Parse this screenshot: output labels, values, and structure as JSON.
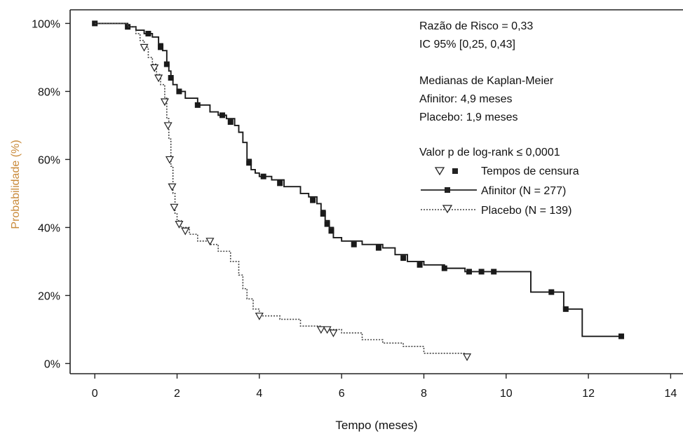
{
  "chart_data": {
    "type": "line",
    "subtype": "kaplan-meier",
    "xlabel": "Tempo (meses)",
    "ylabel": "Probabilidade (%)",
    "xlim": [
      -0.6,
      14.3
    ],
    "ylim": [
      -3,
      104
    ],
    "x_ticks": [
      0,
      2,
      4,
      6,
      8,
      10,
      12,
      14
    ],
    "y_ticks": [
      0,
      20,
      40,
      60,
      80,
      100
    ],
    "y_tick_labels": [
      "0%",
      "20%",
      "40%",
      "60%",
      "80%",
      "100%"
    ],
    "grid": false,
    "legend_position": "top-right",
    "annotations": {
      "hazard_ratio": "Razão de Risco = 0,33",
      "ci": "IC 95% [0,25, 0,43]",
      "medians_title": "Medianas de Kaplan-Meier",
      "median_afinitor": "Afinitor: 4,9 meses",
      "median_placebo": "Placebo: 1,9 meses",
      "pvalue": "Valor p de log-rank ≤ 0,0001"
    },
    "legend": {
      "censor_label": "Tempos de censura",
      "entries": [
        "Afinitor (N = 277)",
        "Placebo (N = 139)"
      ]
    },
    "series": [
      {
        "name": "Afinitor (N = 277)",
        "line_style": "solid",
        "marker": "square",
        "points": [
          [
            0,
            100
          ],
          [
            0.6,
            100
          ],
          [
            0.8,
            99
          ],
          [
            1.0,
            98
          ],
          [
            1.2,
            97
          ],
          [
            1.4,
            96
          ],
          [
            1.55,
            94
          ],
          [
            1.65,
            92
          ],
          [
            1.75,
            88
          ],
          [
            1.8,
            86
          ],
          [
            1.85,
            84
          ],
          [
            1.9,
            82
          ],
          [
            2.0,
            80
          ],
          [
            2.2,
            78
          ],
          [
            2.5,
            76
          ],
          [
            2.8,
            74
          ],
          [
            3.0,
            73
          ],
          [
            3.2,
            72
          ],
          [
            3.4,
            70
          ],
          [
            3.5,
            68
          ],
          [
            3.6,
            65
          ],
          [
            3.7,
            60
          ],
          [
            3.8,
            57
          ],
          [
            3.9,
            56
          ],
          [
            4.0,
            55
          ],
          [
            4.3,
            54
          ],
          [
            4.6,
            52
          ],
          [
            5.0,
            50
          ],
          [
            5.2,
            49
          ],
          [
            5.4,
            47
          ],
          [
            5.5,
            45
          ],
          [
            5.6,
            42
          ],
          [
            5.7,
            40
          ],
          [
            5.8,
            37
          ],
          [
            6.0,
            36
          ],
          [
            6.5,
            35
          ],
          [
            7.0,
            34
          ],
          [
            7.3,
            32
          ],
          [
            7.6,
            30
          ],
          [
            8.0,
            29
          ],
          [
            8.5,
            28
          ],
          [
            9.0,
            27
          ],
          [
            10.5,
            27
          ],
          [
            10.6,
            21
          ],
          [
            11.3,
            21
          ],
          [
            11.4,
            16
          ],
          [
            11.8,
            16
          ],
          [
            11.85,
            8
          ],
          [
            12.8,
            8
          ]
        ],
        "censored": [
          [
            0,
            100
          ],
          [
            0.8,
            99
          ],
          [
            1.3,
            97
          ],
          [
            1.6,
            93
          ],
          [
            1.75,
            88
          ],
          [
            1.85,
            84
          ],
          [
            2.05,
            80
          ],
          [
            2.5,
            76
          ],
          [
            3.1,
            73
          ],
          [
            3.3,
            71
          ],
          [
            3.75,
            59
          ],
          [
            4.1,
            55
          ],
          [
            4.5,
            53
          ],
          [
            5.3,
            48
          ],
          [
            5.55,
            44
          ],
          [
            5.65,
            41
          ],
          [
            5.75,
            39
          ],
          [
            6.3,
            35
          ],
          [
            6.9,
            34
          ],
          [
            7.5,
            31
          ],
          [
            7.9,
            29
          ],
          [
            8.5,
            28
          ],
          [
            9.1,
            27
          ],
          [
            9.4,
            27
          ],
          [
            9.7,
            27
          ],
          [
            11.1,
            21
          ],
          [
            11.45,
            16
          ],
          [
            12.8,
            8
          ]
        ]
      },
      {
        "name": "Placebo (N = 139)",
        "line_style": "dotted",
        "marker": "triangle-down",
        "points": [
          [
            0,
            100
          ],
          [
            0.8,
            99
          ],
          [
            1.0,
            97
          ],
          [
            1.1,
            95
          ],
          [
            1.2,
            93
          ],
          [
            1.3,
            90
          ],
          [
            1.4,
            88
          ],
          [
            1.5,
            85
          ],
          [
            1.6,
            82
          ],
          [
            1.7,
            78
          ],
          [
            1.75,
            72
          ],
          [
            1.8,
            66
          ],
          [
            1.85,
            58
          ],
          [
            1.9,
            50
          ],
          [
            1.95,
            44
          ],
          [
            2.0,
            42
          ],
          [
            2.1,
            40
          ],
          [
            2.3,
            38
          ],
          [
            2.5,
            36
          ],
          [
            2.8,
            35
          ],
          [
            3.0,
            33
          ],
          [
            3.3,
            30
          ],
          [
            3.5,
            26
          ],
          [
            3.6,
            22
          ],
          [
            3.7,
            19
          ],
          [
            3.85,
            16
          ],
          [
            4.0,
            14
          ],
          [
            4.5,
            13
          ],
          [
            5.0,
            11
          ],
          [
            5.5,
            10
          ],
          [
            6.0,
            9
          ],
          [
            6.5,
            7
          ],
          [
            7.0,
            6
          ],
          [
            7.5,
            5
          ],
          [
            8.0,
            3
          ],
          [
            9.0,
            3
          ]
        ],
        "censored": [
          [
            1.2,
            93
          ],
          [
            1.45,
            87
          ],
          [
            1.55,
            84
          ],
          [
            1.7,
            77
          ],
          [
            1.78,
            70
          ],
          [
            1.82,
            60
          ],
          [
            1.88,
            52
          ],
          [
            1.93,
            46
          ],
          [
            2.05,
            41
          ],
          [
            2.2,
            39
          ],
          [
            2.8,
            36
          ],
          [
            4.0,
            14
          ],
          [
            5.5,
            10
          ],
          [
            5.65,
            10
          ],
          [
            5.8,
            9
          ],
          [
            9.05,
            2
          ]
        ]
      }
    ]
  }
}
